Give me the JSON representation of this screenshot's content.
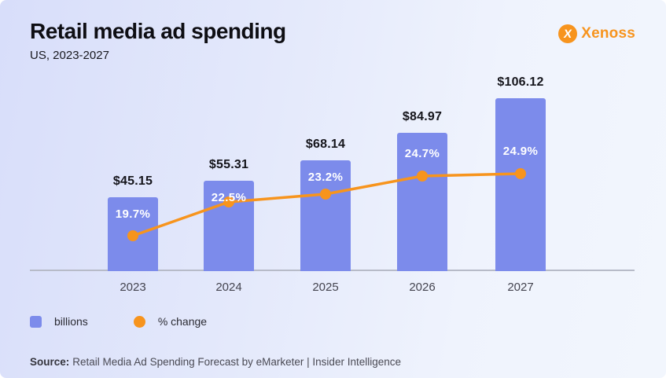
{
  "header": {
    "title": "Retail media ad spending",
    "subtitle": "US, 2023-2027"
  },
  "logo": {
    "mark": "X",
    "text": "Xenoss",
    "color": "#f7941e"
  },
  "chart_data": {
    "type": "bar",
    "title": "Retail media ad spending",
    "subtitle": "US, 2023-2027",
    "categories": [
      "2023",
      "2024",
      "2025",
      "2026",
      "2027"
    ],
    "series": [
      {
        "name": "billions",
        "type": "bar",
        "values": [
          45.15,
          55.31,
          68.14,
          84.97,
          106.12
        ],
        "labels": [
          "$45.15",
          "$55.31",
          "$68.14",
          "$84.97",
          "$106.12"
        ],
        "unit": "USD billions",
        "color": "#7c8beb"
      },
      {
        "name": "% change",
        "type": "line",
        "values": [
          19.7,
          22.5,
          23.2,
          24.7,
          24.9
        ],
        "labels": [
          "19.7%",
          "22.5%",
          "23.2%",
          "24.7%",
          "24.9%"
        ],
        "unit": "percent",
        "color": "#f7941d"
      }
    ],
    "xlabel": "",
    "ylabel": "",
    "ylim": [
      0,
      110
    ],
    "grid": false,
    "legend_position": "bottom-left"
  },
  "source": {
    "label": "Source:",
    "text": "Retail Media Ad Spending Forecast by eMarketer | Insider Intelligence"
  }
}
